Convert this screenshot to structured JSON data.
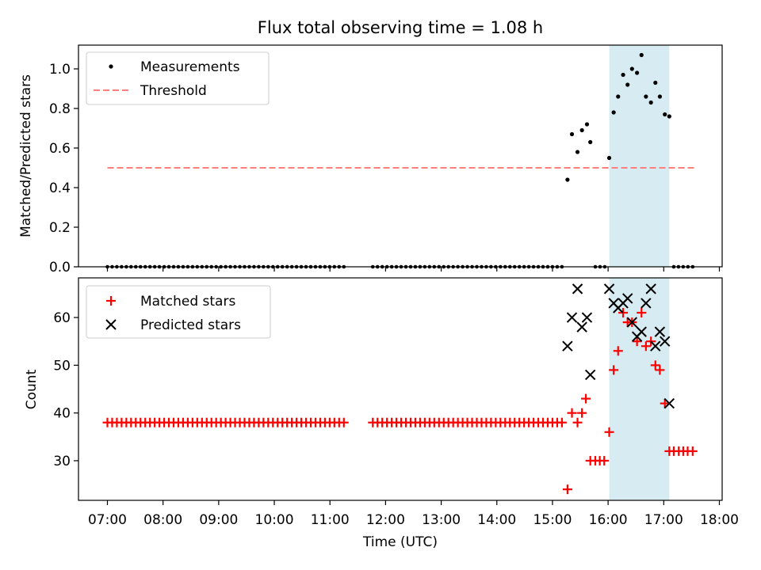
{
  "title": "Flux total observing time = 1.08 h",
  "chart_data": [
    {
      "type": "scatter",
      "ylabel": "Matched/Predicted stars",
      "xlabel": "",
      "ylim": [
        0,
        1.12
      ],
      "yticks": [
        0.0,
        0.2,
        0.4,
        0.6,
        0.8,
        1.0
      ],
      "ytick_labels": [
        "0.0",
        "0.2",
        "0.4",
        "0.6",
        "0.8",
        "1.0"
      ],
      "legend": {
        "position": "top-left",
        "entries": [
          "Measurements",
          "Threshold"
        ]
      },
      "threshold": {
        "value": 0.5,
        "x_start": 7.0,
        "x_end": 17.58,
        "color": "#ff7f7f"
      },
      "highlight": {
        "x_start": 16.02,
        "x_end": 17.1,
        "color": "#add8e6"
      },
      "series": [
        {
          "name": "Measurements",
          "color": "#000000",
          "points": [
            [
              15.27,
              0.44
            ],
            [
              15.35,
              0.67
            ],
            [
              15.45,
              0.58
            ],
            [
              15.53,
              0.69
            ],
            [
              15.62,
              0.72
            ],
            [
              15.68,
              0.63
            ],
            [
              16.02,
              0.55
            ],
            [
              16.1,
              0.78
            ],
            [
              16.18,
              0.86
            ],
            [
              16.27,
              0.97
            ],
            [
              16.35,
              0.92
            ],
            [
              16.43,
              1.0
            ],
            [
              16.52,
              0.98
            ],
            [
              16.6,
              1.07
            ],
            [
              16.68,
              0.86
            ],
            [
              16.77,
              0.83
            ],
            [
              16.85,
              0.93
            ],
            [
              16.93,
              0.86
            ],
            [
              17.02,
              0.77
            ],
            [
              17.1,
              0.76
            ]
          ]
        }
      ]
    },
    {
      "type": "scatter",
      "ylabel": "Count",
      "xlabel": "Time (UTC)",
      "ylim": [
        21.7,
        68.3
      ],
      "yticks": [
        30,
        40,
        50,
        60
      ],
      "ytick_labels": [
        "30",
        "40",
        "50",
        "60"
      ],
      "xlim": [
        6.48,
        18.05
      ],
      "xticks": [
        7,
        8,
        9,
        10,
        11,
        12,
        13,
        14,
        15,
        16,
        17,
        18
      ],
      "xtick_labels": [
        "07:00",
        "08:00",
        "09:00",
        "10:00",
        "11:00",
        "12:00",
        "13:00",
        "14:00",
        "15:00",
        "16:00",
        "17:00",
        "18:00"
      ],
      "legend": {
        "position": "top-left",
        "entries": [
          "Matched stars",
          "Predicted stars"
        ]
      },
      "highlight": {
        "x_start": 16.02,
        "x_end": 17.1,
        "color": "#add8e6"
      },
      "series": [
        {
          "name": "Matched stars",
          "marker": "+",
          "color": "#ff0000",
          "points": [
            [
              15.27,
              24
            ],
            [
              15.35,
              40
            ],
            [
              15.45,
              38
            ],
            [
              15.53,
              40
            ],
            [
              15.6,
              43
            ],
            [
              15.68,
              30
            ],
            [
              15.77,
              30
            ],
            [
              15.85,
              30
            ],
            [
              15.93,
              30
            ],
            [
              16.02,
              36
            ],
            [
              16.1,
              49
            ],
            [
              16.18,
              53
            ],
            [
              16.27,
              61
            ],
            [
              16.35,
              59
            ],
            [
              16.43,
              59
            ],
            [
              16.52,
              55
            ],
            [
              16.6,
              61
            ],
            [
              16.68,
              54
            ],
            [
              16.77,
              55
            ],
            [
              16.85,
              50
            ],
            [
              16.93,
              49
            ],
            [
              17.02,
              42
            ],
            [
              17.1,
              32
            ],
            [
              17.18,
              32
            ],
            [
              17.27,
              32
            ],
            [
              17.35,
              32
            ],
            [
              17.43,
              32
            ],
            [
              17.52,
              32
            ]
          ]
        },
        {
          "name": "Predicted stars",
          "marker": "x",
          "color": "#000000",
          "points": [
            [
              15.27,
              54
            ],
            [
              15.35,
              60
            ],
            [
              15.45,
              66
            ],
            [
              15.53,
              58
            ],
            [
              15.62,
              60
            ],
            [
              15.68,
              48
            ],
            [
              16.02,
              66
            ],
            [
              16.1,
              63
            ],
            [
              16.18,
              62
            ],
            [
              16.27,
              63
            ],
            [
              16.35,
              64
            ],
            [
              16.43,
              59
            ],
            [
              16.52,
              56
            ],
            [
              16.6,
              57
            ],
            [
              16.68,
              63
            ],
            [
              16.77,
              66
            ],
            [
              16.85,
              54
            ],
            [
              16.93,
              57
            ],
            [
              17.02,
              55
            ],
            [
              17.1,
              42
            ]
          ]
        }
      ]
    }
  ],
  "zero_samples": {
    "ranges": [
      {
        "x_start": 7.0,
        "x_end": 11.28,
        "step": 0.085
      },
      {
        "x_start": 11.77,
        "x_end": 15.2,
        "step": 0.085
      },
      {
        "x_start": 15.77,
        "x_end": 15.94,
        "step": 0.085
      },
      {
        "x_start": 17.18,
        "x_end": 17.52,
        "step": 0.085
      }
    ],
    "top_value": 0.0,
    "bottom_value": 38
  }
}
